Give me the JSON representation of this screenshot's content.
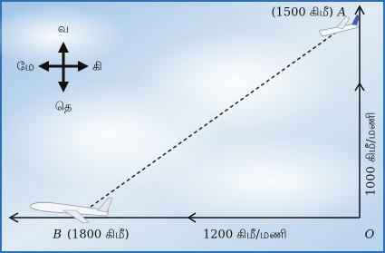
{
  "compass": {
    "north": "வ",
    "west": "மே",
    "east": "கி",
    "south": "தெ"
  },
  "points": {
    "a": {
      "name": "A",
      "distance": "(1500 கிமீ)"
    },
    "b": {
      "name": "B",
      "distance": "(1800 கிமீ)"
    },
    "o": {
      "name": "O"
    }
  },
  "speeds": {
    "horizontal": "1200 கிமீ/மணி",
    "vertical": "1000 கிமீ/மணி"
  }
}
